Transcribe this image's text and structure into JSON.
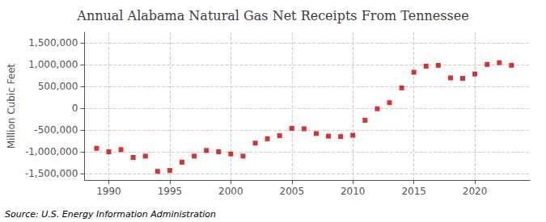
{
  "chart_data": {
    "type": "scatter",
    "title": "Annual Alabama Natural Gas Net Receipts From Tennessee",
    "ylabel": "Million Cubic Feet",
    "annotations": [
      "Source: U.S. Energy Information Administration"
    ],
    "x": [
      1989,
      1990,
      1991,
      1992,
      1993,
      1994,
      1995,
      1996,
      1997,
      1998,
      1999,
      2000,
      2001,
      2002,
      2003,
      2004,
      2005,
      2006,
      2007,
      2008,
      2009,
      2010,
      2011,
      2012,
      2013,
      2014,
      2015,
      2016,
      2017,
      2018,
      2019,
      2020,
      2021,
      2022,
      2023
    ],
    "values": [
      -920000,
      -1000000,
      -950000,
      -1130000,
      -1100000,
      -1450000,
      -1430000,
      -1240000,
      -1100000,
      -970000,
      -1000000,
      -1050000,
      -1100000,
      -800000,
      -700000,
      -630000,
      -460000,
      -470000,
      -580000,
      -640000,
      -650000,
      -620000,
      -275000,
      -10000,
      130000,
      470000,
      830000,
      970000,
      990000,
      700000,
      690000,
      790000,
      1010000,
      1050000,
      990000
    ],
    "color": "#cc0000",
    "marker": "square",
    "xlim": [
      1988.0,
      2024.5
    ],
    "xticks": [
      1990,
      1995,
      2000,
      2005,
      2010,
      2015,
      2020
    ],
    "ylim": [
      -1650000,
      1750000
    ],
    "yticks": [
      {
        "value": -1500000,
        "label": "-1,500,000"
      },
      {
        "value": -1000000,
        "label": "-1,000,000"
      },
      {
        "value": -500000,
        "label": "-500,000"
      },
      0,
      {
        "value": 500000,
        "label": "500,000"
      },
      {
        "value": 1000000,
        "label": "1,000,000"
      },
      {
        "value": 1500000,
        "label": "1,500,000"
      }
    ],
    "grid": true
  }
}
